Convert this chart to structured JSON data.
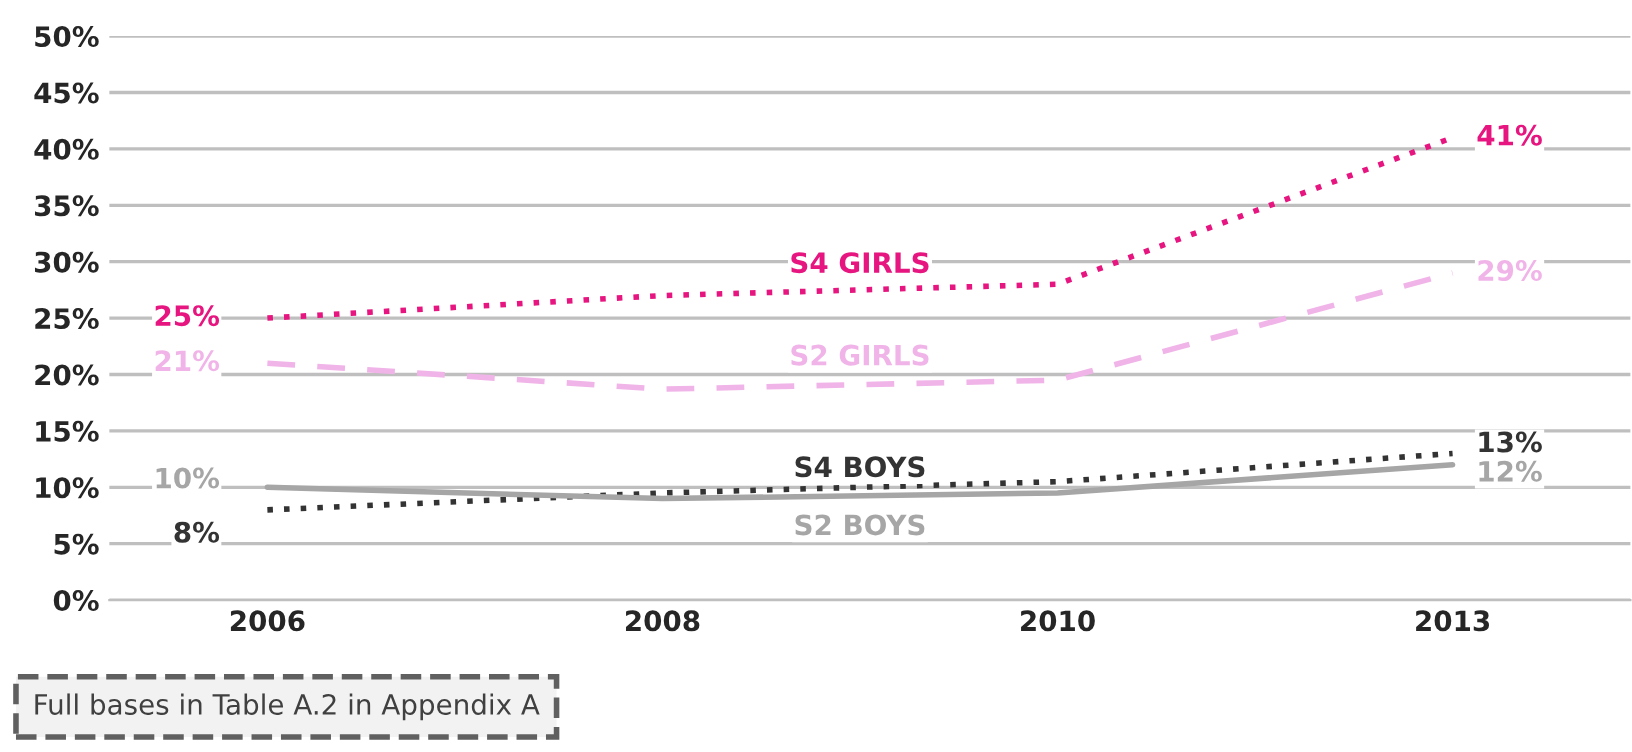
{
  "chart_data": {
    "type": "line",
    "categories": [
      "2006",
      "2008",
      "2010",
      "2013"
    ],
    "series": [
      {
        "name": "S4 GIRLS",
        "color": "#e6157f",
        "line_style": "dotted",
        "values": [
          25,
          27,
          28,
          41
        ],
        "value_labels": [
          "25%",
          null,
          null,
          "41%"
        ]
      },
      {
        "name": "S2 GIRLS",
        "color": "#f0b4e8",
        "line_style": "dashed",
        "values": [
          21,
          18.7,
          19.5,
          29
        ],
        "value_labels": [
          "21%",
          null,
          null,
          "29%"
        ]
      },
      {
        "name": "S4 BOYS",
        "color": "#333333",
        "line_style": "dotted",
        "values": [
          8,
          9.5,
          10.5,
          13
        ],
        "value_labels": [
          "8%",
          null,
          null,
          "13%"
        ]
      },
      {
        "name": "S2 BOYS",
        "color": "#a6a6a6",
        "line_style": "solid",
        "values": [
          10,
          9,
          9.5,
          12
        ],
        "value_labels": [
          "10%",
          null,
          null,
          "12%"
        ]
      }
    ],
    "ylim": [
      0,
      50
    ],
    "yticks": [
      {
        "value": 0,
        "label": "0%"
      },
      {
        "value": 5,
        "label": "5%"
      },
      {
        "value": 10,
        "label": "10%"
      },
      {
        "value": 15,
        "label": "15%"
      },
      {
        "value": 20,
        "label": "20%"
      },
      {
        "value": 25,
        "label": "25%"
      },
      {
        "value": 30,
        "label": "30%"
      },
      {
        "value": 35,
        "label": "35%"
      },
      {
        "value": 40,
        "label": "40%"
      },
      {
        "value": 45,
        "label": "45%"
      },
      {
        "value": 50,
        "label": "50%"
      }
    ],
    "grid": "y",
    "legend": false,
    "marker": "none",
    "annotations": [
      "Full bases in Table A.2 in Appendix A"
    ]
  }
}
